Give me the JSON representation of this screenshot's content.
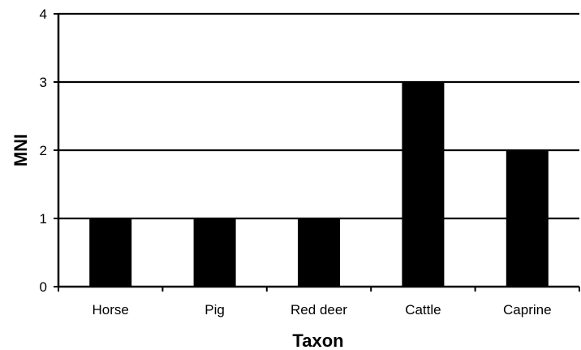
{
  "chart_data": {
    "type": "bar",
    "categories": [
      "Horse",
      "Pig",
      "Red deer",
      "Cattle",
      "Caprine"
    ],
    "values": [
      1,
      1,
      1,
      3,
      2
    ],
    "xlabel": "Taxon",
    "ylabel": "MNI",
    "ylim": [
      0,
      4
    ],
    "yticks": [
      0,
      1,
      2,
      3,
      4
    ],
    "grid": "horizontal",
    "legend": "none",
    "bar_color": "#000000"
  }
}
